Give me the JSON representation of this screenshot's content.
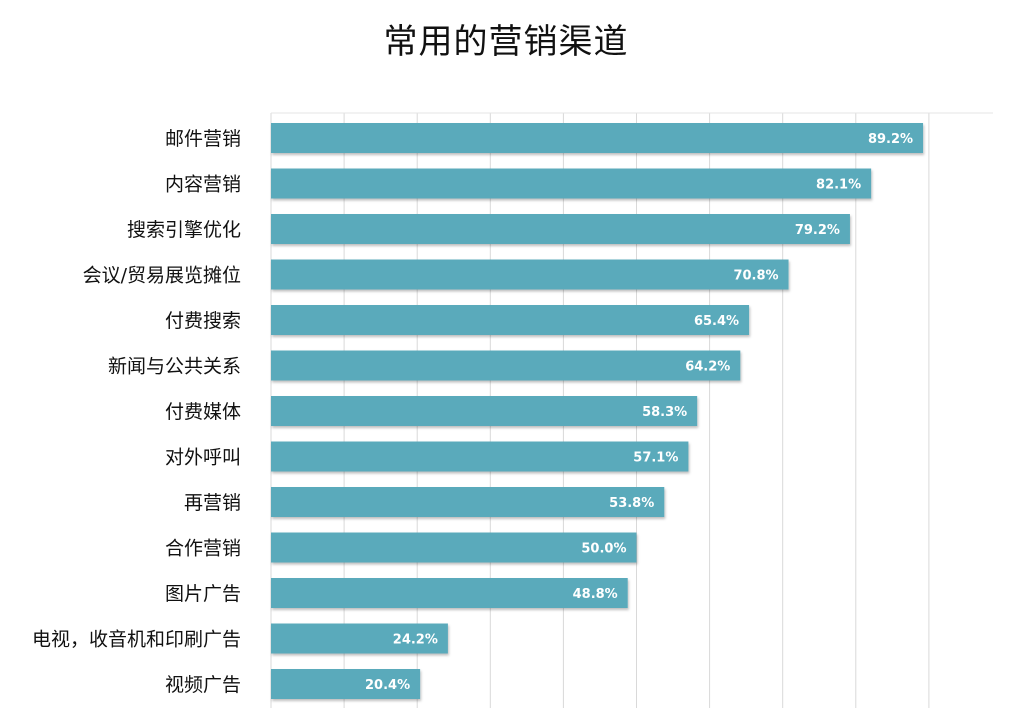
{
  "chart_data": {
    "type": "bar",
    "orientation": "horizontal",
    "title": "常用的营销渠道",
    "categories": [
      "邮件营销",
      "内容营销",
      "搜索引擎优化",
      "会议/贸易展览摊位",
      "付费搜索",
      "新闻与公共关系",
      "付费媒体",
      "对外呼叫",
      "再营销",
      "合作营销",
      "图片广告",
      "电视，收音机和印刷广告",
      "视频广告"
    ],
    "values": [
      89.2,
      82.1,
      79.2,
      70.8,
      65.4,
      64.2,
      58.3,
      57.1,
      53.8,
      50.0,
      48.8,
      24.2,
      20.4
    ],
    "value_labels": [
      "89.2%",
      "82.1%",
      "79.2%",
      "70.8%",
      "65.4%",
      "64.2%",
      "58.3%",
      "57.1%",
      "53.8%",
      "50.0%",
      "48.8%",
      "24.2%",
      "20.4%"
    ],
    "xlim": [
      0,
      100
    ],
    "grid": true,
    "bar_color": "#5aaabb"
  }
}
